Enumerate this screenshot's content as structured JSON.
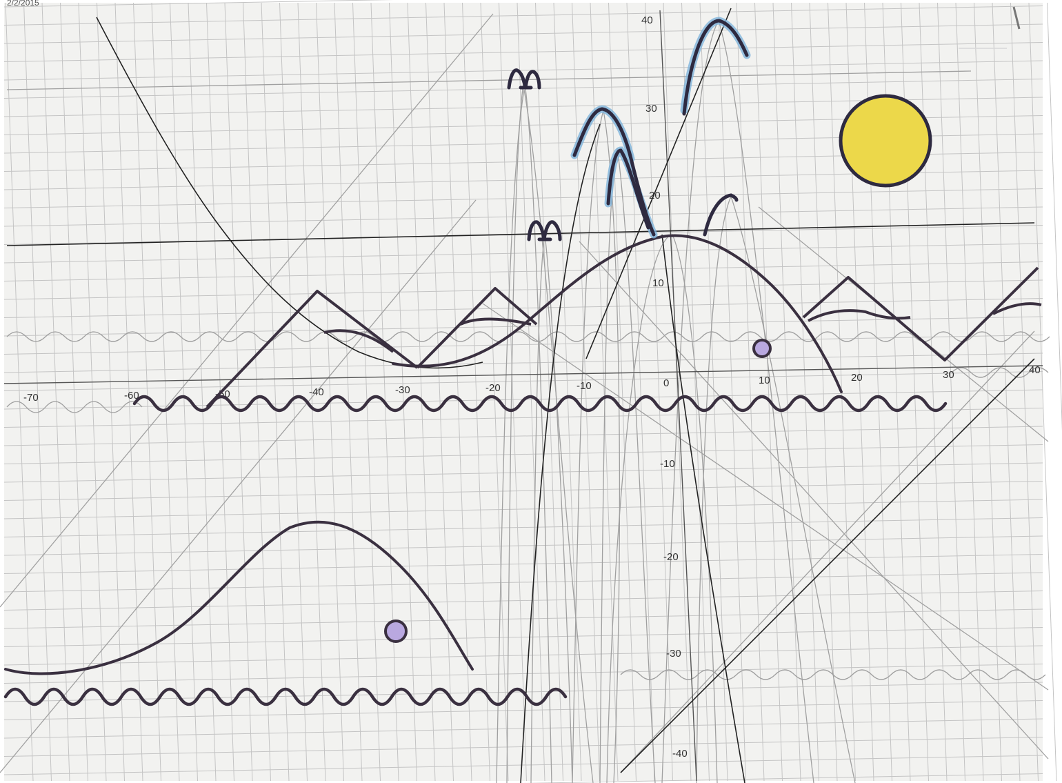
{
  "header": {
    "date_fragment": "2/2/2015"
  },
  "axes": {
    "x_ticks": [
      "-70",
      "-60",
      "-50",
      "-40",
      "-30",
      "-20",
      "-10",
      "0",
      "10",
      "20",
      "30",
      "40"
    ],
    "y_ticks": [
      "40",
      "30",
      "20",
      "10",
      "-10",
      "-20",
      "-30",
      "-40"
    ]
  },
  "colors": {
    "paper": "#f2f2f0",
    "grid": "#b8b8b8",
    "ink": "#3a3040",
    "pencil": "#9a9a9a",
    "sun_fill": "#ecd84a",
    "spout_blue": "#7fb4dc",
    "eye_fill": "#b9a8e0"
  },
  "scene": {
    "elements": [
      "sun",
      "big-whale",
      "small-whale",
      "water-spouts",
      "mountains",
      "waves",
      "horizon"
    ]
  }
}
